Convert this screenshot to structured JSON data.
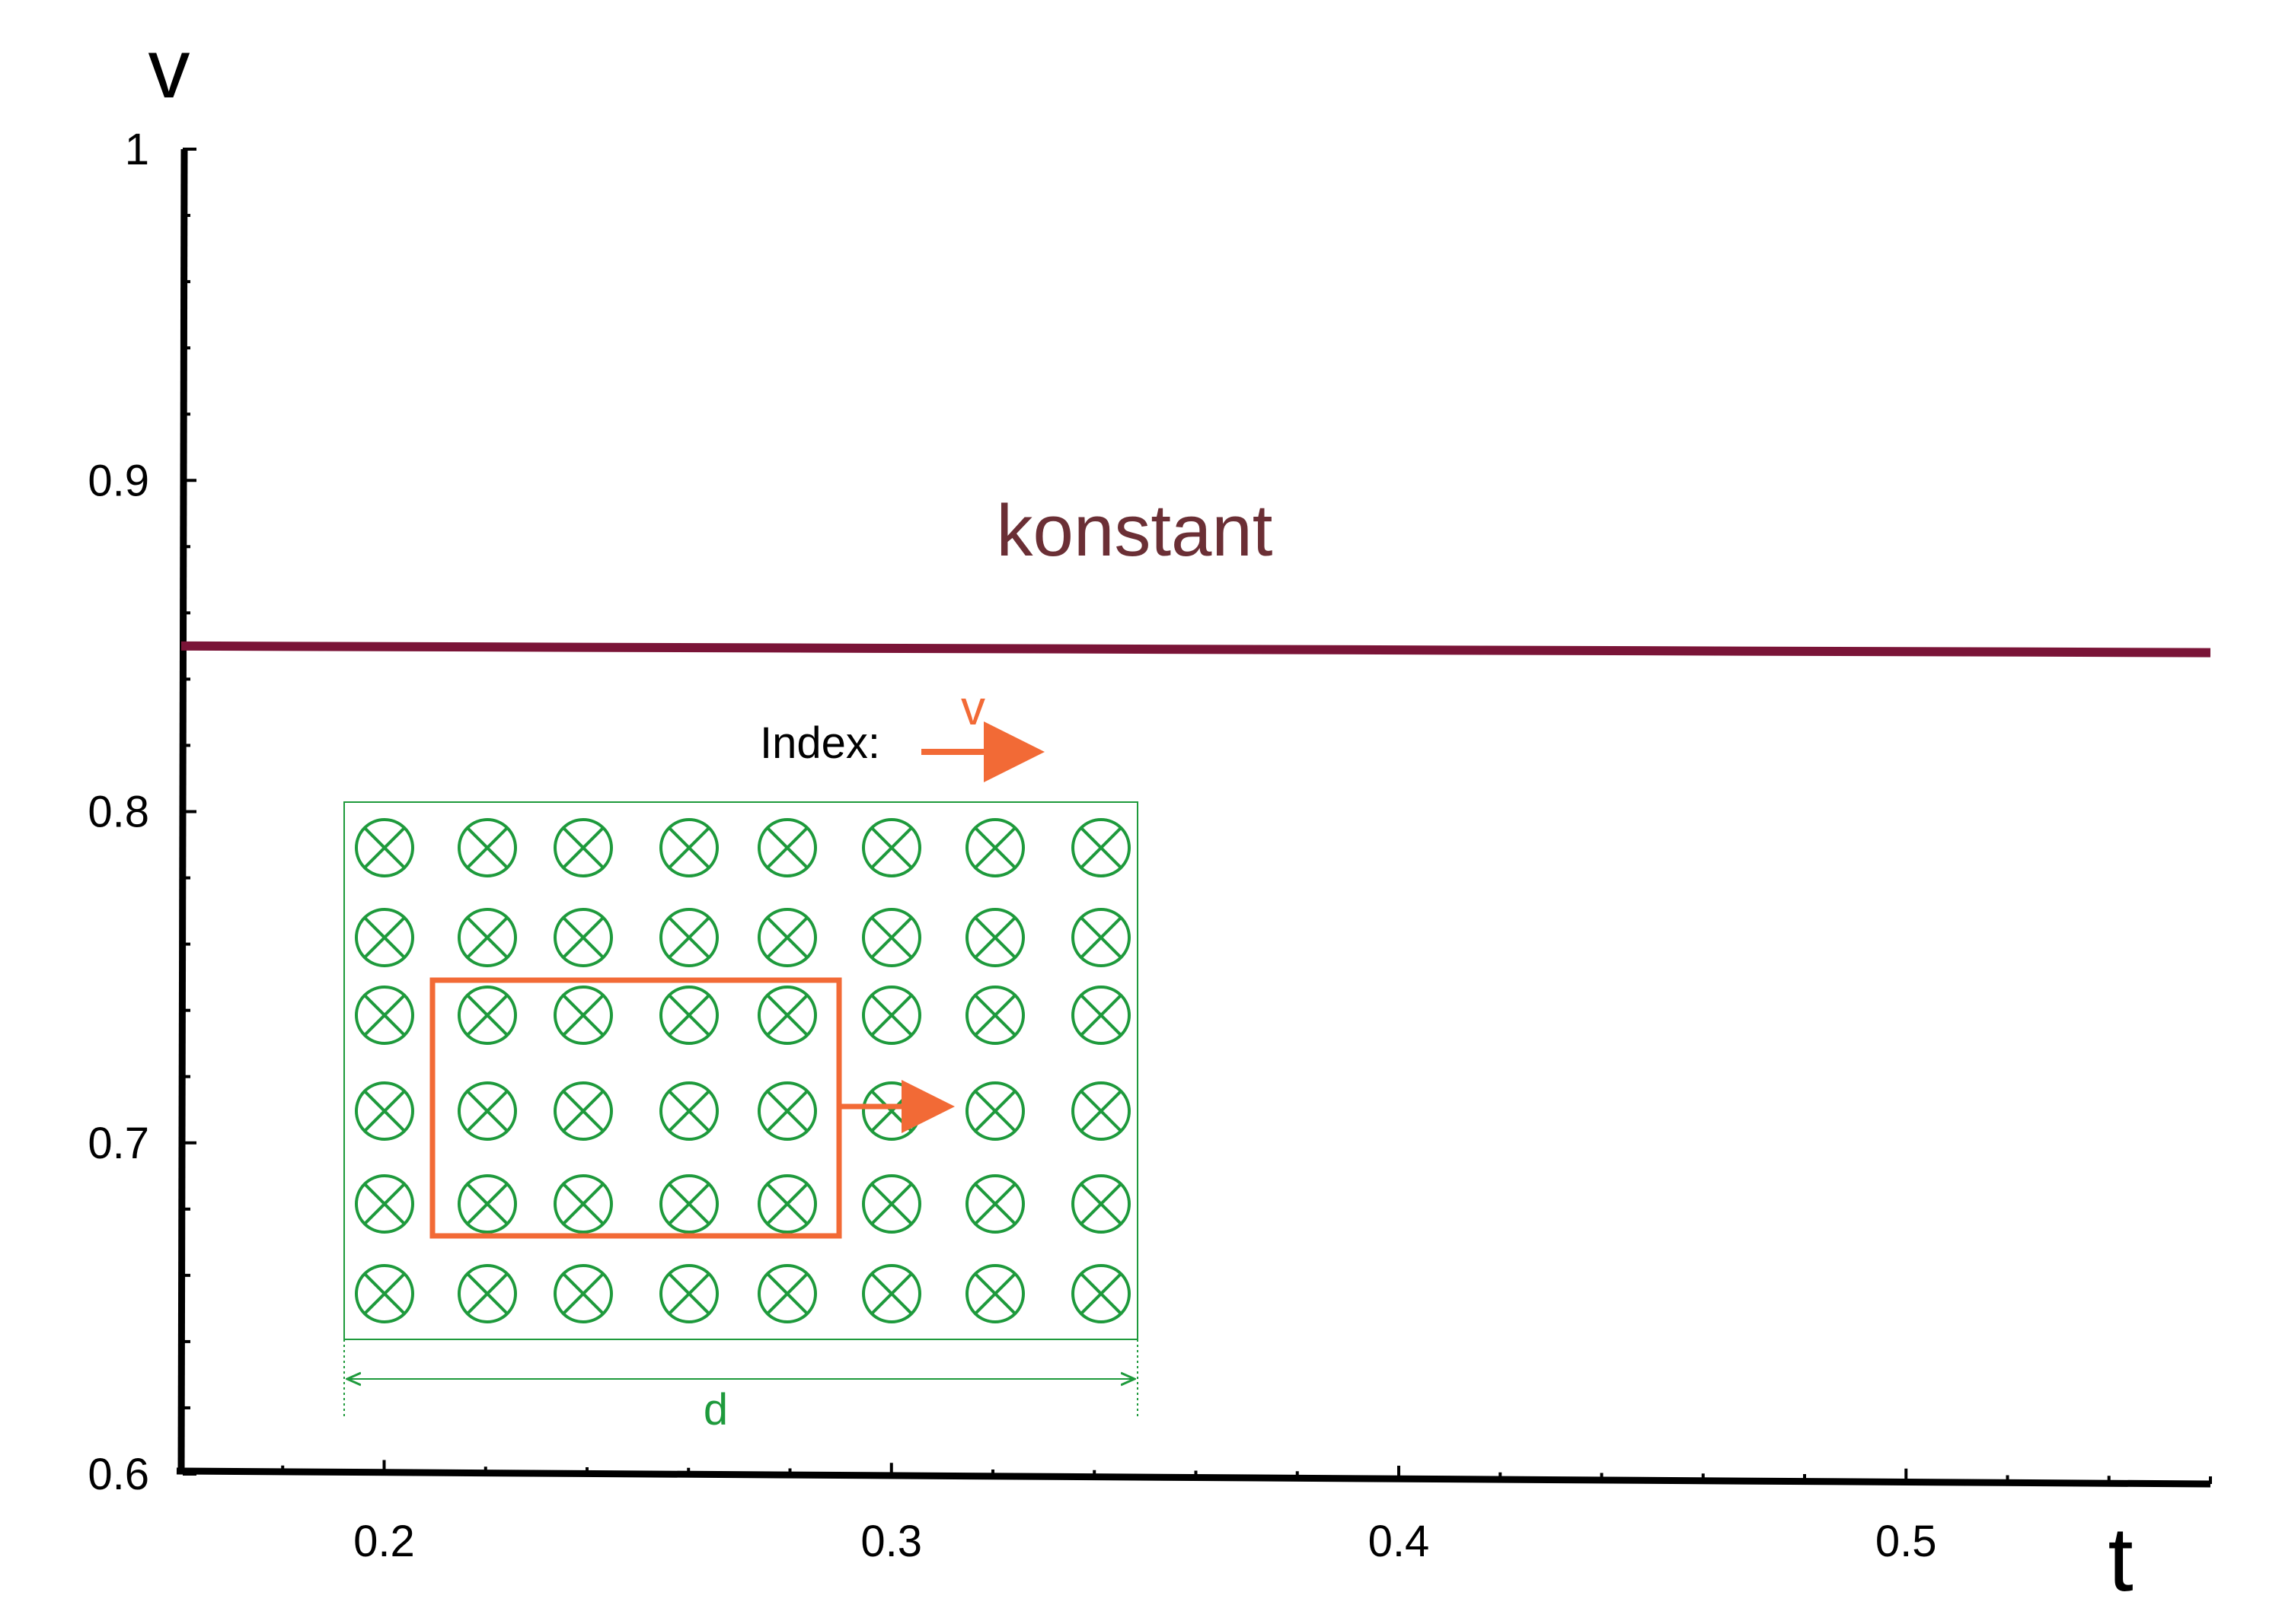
{
  "colors": {
    "axis": "#000000",
    "line": "#7a1437",
    "annotation": "#6b2f35",
    "grid_symbols": "#1e9a3c",
    "frame": "#f26a36"
  },
  "chart_data": {
    "type": "line",
    "title": "",
    "xlabel": "t",
    "ylabel": "v",
    "xlim": [
      0.16,
      0.56
    ],
    "ylim": [
      0.6,
      1.0
    ],
    "x_ticks": [
      0.2,
      0.3,
      0.4,
      0.5
    ],
    "y_ticks": [
      0.6,
      0.7,
      0.8,
      0.9,
      1.0
    ],
    "x_tick_labels": [
      "0.2",
      "0.3",
      "0.4",
      "0.5"
    ],
    "y_tick_labels": [
      "0.6",
      "0.7",
      "0.8",
      "0.9",
      "1"
    ],
    "grid": false,
    "series": [
      {
        "x": [
          0.16,
          0.56
        ],
        "y": [
          0.85,
          0.848
        ]
      }
    ],
    "annotations": {
      "line_label": "konstant",
      "index_label": "Index:",
      "velocity_label": "v",
      "distance_label": "d"
    },
    "inset": {
      "description_symbol": "field-into-page",
      "rows": 6,
      "columns": 8
    }
  }
}
